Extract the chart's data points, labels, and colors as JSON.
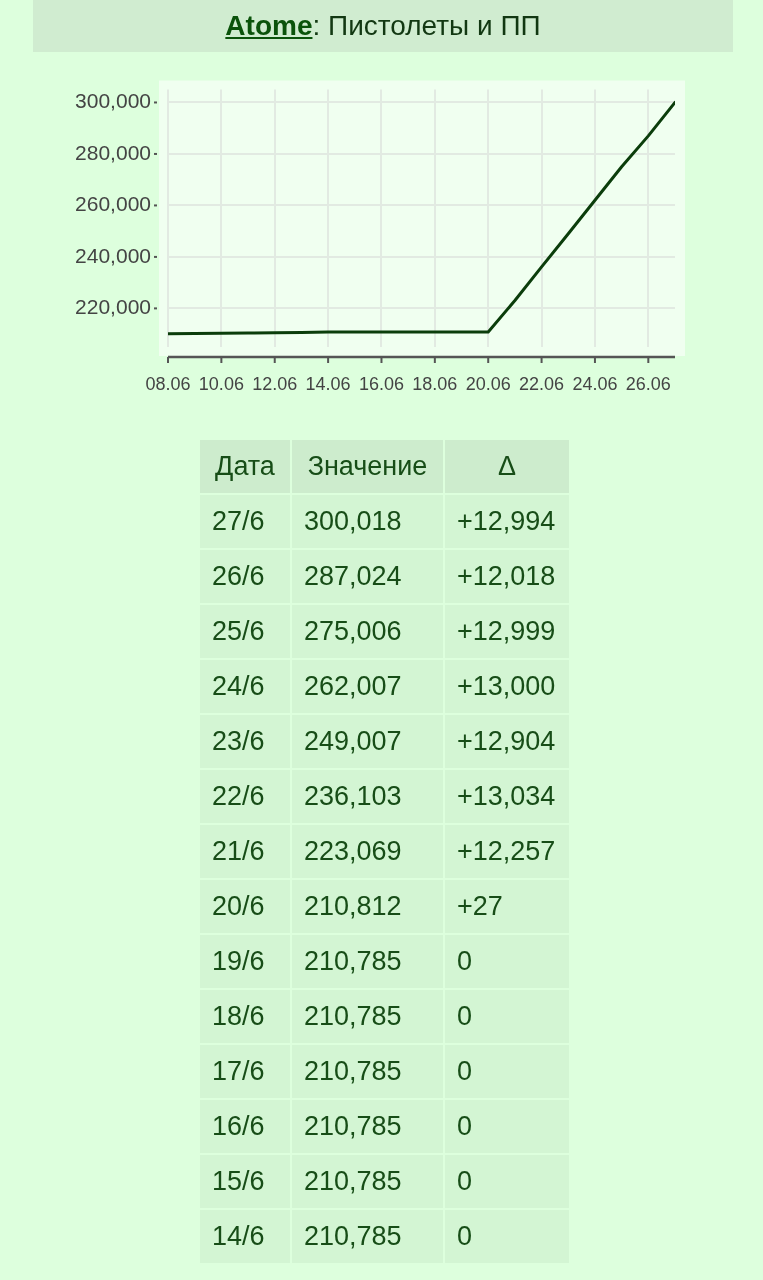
{
  "chart_data": [
    {
      "type": "line",
      "title": "Atome: Пистолеты и ПП",
      "x": [
        "--06-08",
        "--06-09",
        "--06-10",
        "--06-11",
        "--06-12",
        "--06-13",
        "--06-14",
        "--06-15",
        "--06-16",
        "--06-17",
        "--06-18",
        "--06-19",
        "--06-20",
        "--06-21",
        "--06-22",
        "--06-23",
        "--06-24",
        "--06-25",
        "--06-26",
        "--06-27"
      ],
      "values": [
        210100,
        210200,
        210300,
        210400,
        210500,
        210600,
        210785,
        210785,
        210785,
        210785,
        210785,
        210785,
        210812,
        223069,
        236103,
        249007,
        262007,
        275006,
        287024,
        300018
      ],
      "color": "#0b3d0b",
      "xlim": [
        "--06-08",
        "--06-27"
      ],
      "xticks": [
        {
          "value": "--06-08",
          "label": "08.06"
        },
        {
          "value": "--06-10",
          "label": "10.06"
        },
        {
          "value": "--06-12",
          "label": "12.06"
        },
        {
          "value": "--06-14",
          "label": "14.06"
        },
        {
          "value": "--06-16",
          "label": "16.06"
        },
        {
          "value": "--06-18",
          "label": "18.06"
        },
        {
          "value": "--06-20",
          "label": "20.06"
        },
        {
          "value": "--06-22",
          "label": "22.06"
        },
        {
          "value": "--06-24",
          "label": "24.06"
        },
        {
          "value": "--06-26",
          "label": "26.06"
        }
      ],
      "ylim": [
        205000,
        305000
      ],
      "yticks": [
        {
          "value": 220000,
          "label": "220,000"
        },
        {
          "value": 240000,
          "label": "240,000"
        },
        {
          "value": 260000,
          "label": "260,000"
        },
        {
          "value": 280000,
          "label": "280,000"
        },
        {
          "value": 300000,
          "label": "300,000"
        }
      ],
      "grid": true,
      "marker": "none",
      "line_style": "solid"
    },
    {
      "type": "heatmap",
      "ylabel": "Дата",
      "categories": [
        "Значение",
        "Δ"
      ],
      "color": "#d3f5d3",
      "y_categories": [
        "27/6",
        "26/6",
        "25/6",
        "24/6",
        "23/6",
        "22/6",
        "21/6",
        "20/6",
        "19/6",
        "18/6",
        "17/6",
        "16/6",
        "15/6",
        "14/6"
      ],
      "cells": [
        [
          null,
          null
        ],
        [
          null,
          null
        ],
        [
          null,
          null
        ],
        [
          null,
          null
        ],
        [
          null,
          null
        ],
        [
          null,
          null
        ],
        [
          null,
          null
        ],
        [
          null,
          null
        ],
        [
          null,
          null
        ],
        [
          null,
          null
        ],
        [
          null,
          null
        ],
        [
          null,
          null
        ],
        [
          null,
          null
        ],
        [
          null,
          null
        ]
      ],
      "cell_labels": [
        [
          "300,018",
          "+12,994"
        ],
        [
          "287,024",
          "+12,018"
        ],
        [
          "275,006",
          "+12,999"
        ],
        [
          "262,007",
          "+13,000"
        ],
        [
          "249,007",
          "+12,904"
        ],
        [
          "236,103",
          "+13,034"
        ],
        [
          "223,069",
          "+12,257"
        ],
        [
          "210,812",
          "+27"
        ],
        [
          "210,785",
          "0"
        ],
        [
          "210,785",
          "0"
        ],
        [
          "210,785",
          "0"
        ],
        [
          "210,785",
          "0"
        ],
        [
          "210,785",
          "0"
        ],
        [
          "210,785",
          "0"
        ]
      ]
    }
  ]
}
